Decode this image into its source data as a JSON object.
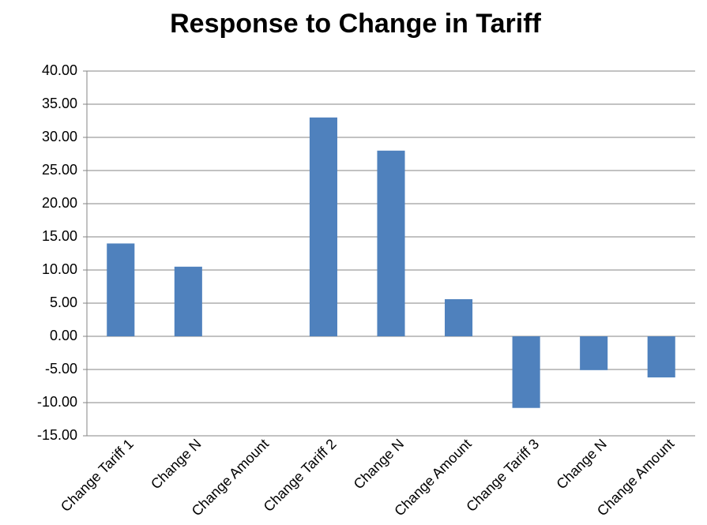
{
  "chart_data": {
    "type": "bar",
    "title": "Response to Change in Tariff",
    "categories": [
      "Change Tariff 1",
      "Change N",
      "Change Amount",
      "Change Tariff 2",
      "Change N",
      "Change Amount",
      "Change Tariff 3",
      "Change N",
      "Change Amount"
    ],
    "values": [
      14,
      10.5,
      0,
      33,
      28,
      5.6,
      -10.8,
      -5.1,
      -6.2
    ],
    "color": "#4f81bd",
    "ylim": [
      -15,
      40
    ],
    "yticks": [
      {
        "value": -15,
        "label": "-15.00"
      },
      {
        "value": -10,
        "label": "-10.00"
      },
      {
        "value": -5,
        "label": "-5.00"
      },
      {
        "value": 0,
        "label": "0.00"
      },
      {
        "value": 5,
        "label": "5.00"
      },
      {
        "value": 10,
        "label": "10.00"
      },
      {
        "value": 15,
        "label": "15.00"
      },
      {
        "value": 20,
        "label": "20.00"
      },
      {
        "value": 25,
        "label": "25.00"
      },
      {
        "value": 30,
        "label": "30.00"
      },
      {
        "value": 35,
        "label": "35.00"
      },
      {
        "value": 40,
        "label": "40.00"
      }
    ],
    "grid": true
  }
}
